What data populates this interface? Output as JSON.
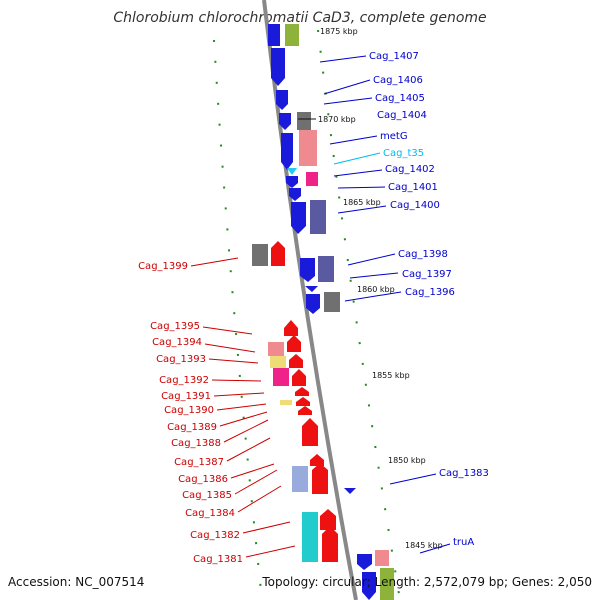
{
  "title": "Chlorobium chlorochromatii CaD3, complete genome",
  "footer": {
    "accession": "Accession: NC_007514",
    "topology": "Topology: circular; Length: 2,572,079 bp; Genes: 2,050"
  },
  "colors": {
    "forward_label": "#0000cc",
    "reverse_label": "#cc0000",
    "trna_label": "#00bbee",
    "backbone": "#888888",
    "ticks": "#228b22"
  },
  "ticks": [
    "1875 kbp",
    "1870 kbp",
    "1865 kbp",
    "1860 kbp",
    "1855 kbp",
    "1850 kbp",
    "1845 kbp"
  ],
  "forward_genes": [
    "Cag_1407",
    "Cag_1406",
    "Cag_1405",
    "Cag_1404",
    "metG",
    "Cag_t35",
    "Cag_1402",
    "Cag_1401",
    "Cag_1400",
    "Cag_1398",
    "Cag_1397",
    "Cag_1396",
    "Cag_1383",
    "truA"
  ],
  "reverse_genes": [
    "Cag_1399",
    "Cag_1395",
    "Cag_1394",
    "Cag_1393",
    "Cag_1392",
    "Cag_1391",
    "Cag_1390",
    "Cag_1389",
    "Cag_1388",
    "Cag_1387",
    "Cag_1386",
    "Cag_1385",
    "Cag_1384",
    "Cag_1382",
    "Cag_1381"
  ]
}
